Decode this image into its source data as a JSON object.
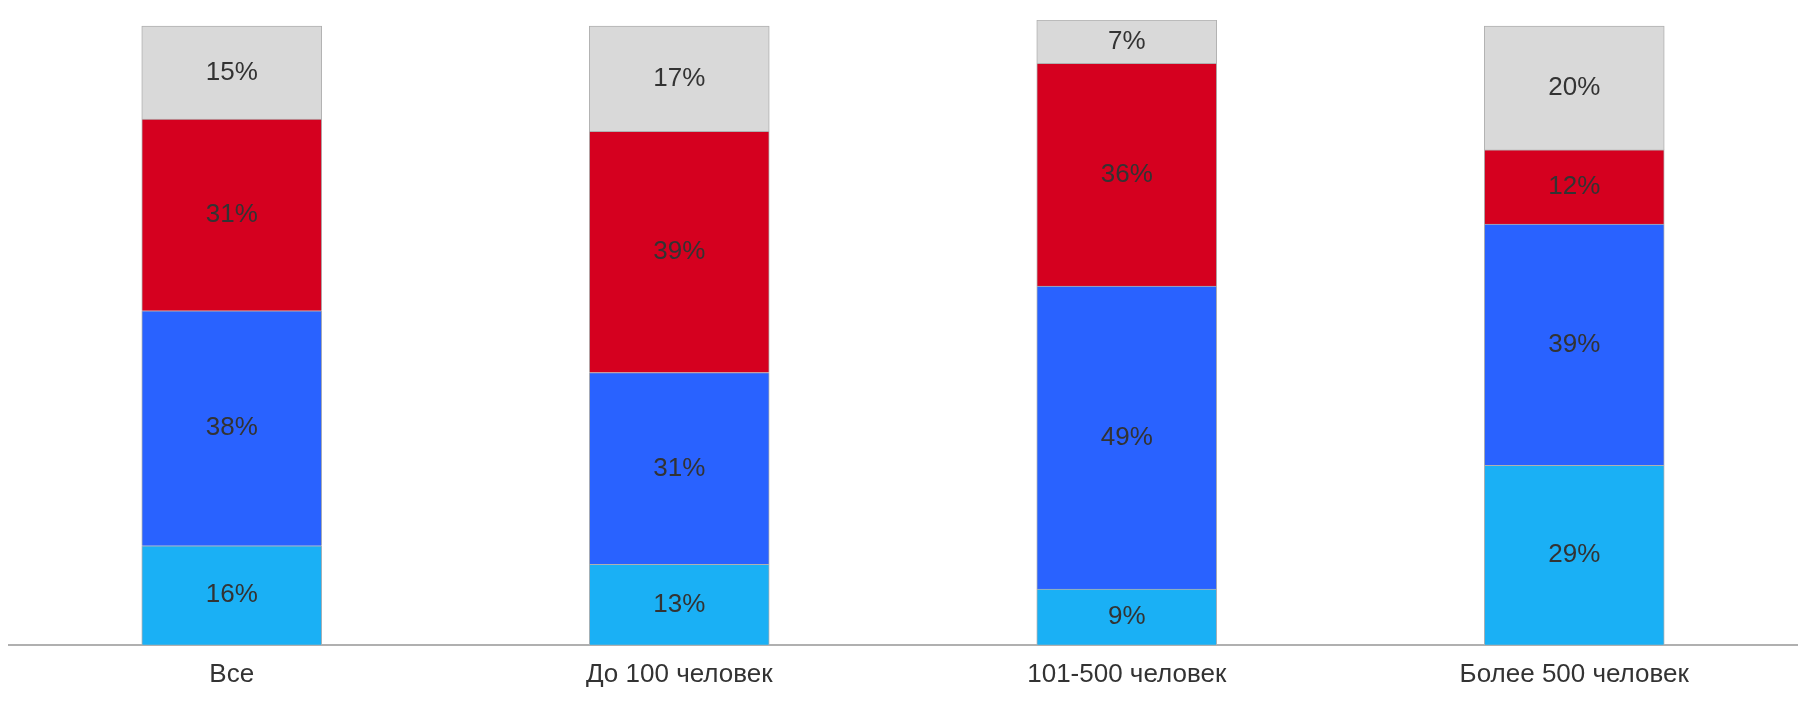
{
  "chart_data": {
    "type": "bar",
    "stacked": true,
    "categories": [
      "Все",
      "До 100 человек",
      "101-500 человек",
      "Более 500 человек"
    ],
    "ylim": [
      0,
      101
    ],
    "tick_labels": "x",
    "data_labels": true,
    "series": [
      {
        "color": "#1ab0f5",
        "values": [
          16,
          13,
          9,
          29
        ],
        "value_labels": [
          "16%",
          "13%",
          "9%",
          "29%"
        ]
      },
      {
        "color": "#2962ff",
        "values": [
          38,
          31,
          49,
          39
        ],
        "value_labels": [
          "38%",
          "31%",
          "49%",
          "39%"
        ]
      },
      {
        "color": "#d5001f",
        "values": [
          31,
          39,
          36,
          12
        ],
        "value_labels": [
          "31%",
          "39%",
          "36%",
          "12%"
        ]
      },
      {
        "color": "#d9d9d9",
        "values": [
          15,
          17,
          7,
          20
        ],
        "value_labels": [
          "15%",
          "17%",
          "7%",
          "20%"
        ]
      }
    ]
  }
}
